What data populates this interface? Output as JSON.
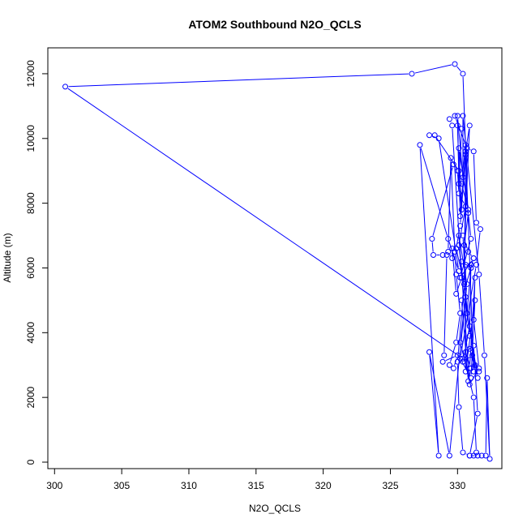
{
  "chart_data": {
    "type": "line",
    "title": "ATOM2 Southbound N2O_QCLS",
    "xlabel": "N2O_QCLS",
    "ylabel": "Altitude (m)",
    "xlim": [
      299.5,
      333.3
    ],
    "ylim": [
      -200,
      12800
    ],
    "x_ticks": [
      300,
      305,
      310,
      315,
      320,
      325,
      330
    ],
    "y_ticks": [
      0,
      2000,
      4000,
      6000,
      8000,
      10000,
      12000
    ],
    "series_color": "#0000ff",
    "marker": "open-circle",
    "grid": false,
    "legend": "none",
    "points": [
      [
        331.6,
        2800
      ],
      [
        331.1,
        3300
      ],
      [
        330.4,
        3100
      ],
      [
        330.9,
        4200
      ],
      [
        331.5,
        2600
      ],
      [
        330.9,
        3500
      ],
      [
        331.3,
        3000
      ],
      [
        330.6,
        5100
      ],
      [
        330.2,
        3700
      ],
      [
        331.2,
        2000
      ],
      [
        331.4,
        300
      ],
      [
        331.2,
        200
      ],
      [
        330.9,
        200
      ],
      [
        331.5,
        200
      ],
      [
        331.8,
        200
      ],
      [
        332.1,
        200
      ],
      [
        332.2,
        2600
      ],
      [
        332.4,
        100
      ],
      [
        332.0,
        3300
      ],
      [
        331.6,
        5800
      ],
      [
        330.4,
        10700
      ],
      [
        330.4,
        8800
      ],
      [
        330.0,
        10700
      ],
      [
        330.1,
        8600
      ],
      [
        330.3,
        10300
      ],
      [
        330.0,
        10400
      ],
      [
        330.2,
        7600
      ],
      [
        330.6,
        9600
      ],
      [
        330.9,
        10400
      ],
      [
        330.5,
        6700
      ],
      [
        330.8,
        7700
      ],
      [
        331.0,
        6900
      ],
      [
        330.2,
        5700
      ],
      [
        331.2,
        6300
      ],
      [
        330.3,
        5000
      ],
      [
        330.8,
        2500
      ],
      [
        331.0,
        2900
      ],
      [
        330.6,
        3400
      ],
      [
        331.2,
        3600
      ],
      [
        331.5,
        1500
      ],
      [
        330.9,
        200
      ],
      [
        330.4,
        300
      ],
      [
        330.1,
        1700
      ],
      [
        330.0,
        3100
      ],
      [
        330.5,
        5500
      ],
      [
        329.9,
        6600
      ],
      [
        330.2,
        7300
      ],
      [
        330.6,
        9500
      ],
      [
        330.5,
        5500
      ],
      [
        330.7,
        9700
      ],
      [
        331.2,
        9600
      ],
      [
        331.4,
        7400
      ],
      [
        331.7,
        7200
      ],
      [
        331.4,
        6100
      ],
      [
        330.2,
        3200
      ],
      [
        331.0,
        2600
      ],
      [
        331.3,
        5000
      ],
      [
        330.6,
        2800
      ],
      [
        330.6,
        6100
      ],
      [
        330.3,
        6200
      ],
      [
        331.0,
        6000
      ],
      [
        330.7,
        4600
      ],
      [
        330.4,
        7000
      ],
      [
        330.8,
        6500
      ],
      [
        331.2,
        6300
      ],
      [
        331.0,
        6100
      ],
      [
        330.9,
        3900
      ],
      [
        330.1,
        6700
      ],
      [
        330.6,
        7900
      ],
      [
        330.1,
        8300
      ],
      [
        330.0,
        9000
      ],
      [
        330.3,
        7800
      ],
      [
        330.1,
        9700
      ],
      [
        330.8,
        7800
      ],
      [
        330.3,
        8600
      ],
      [
        330.6,
        9800
      ],
      [
        329.8,
        10700
      ],
      [
        329.4,
        10600
      ],
      [
        329.6,
        10400
      ],
      [
        330.3,
        5700
      ],
      [
        329.9,
        5200
      ],
      [
        329.6,
        6600
      ],
      [
        329.6,
        6300
      ],
      [
        329.3,
        6500
      ],
      [
        329.5,
        9400
      ],
      [
        329.8,
        6500
      ],
      [
        329.9,
        5800
      ],
      [
        330.2,
        4600
      ],
      [
        329.9,
        3700
      ],
      [
        329.4,
        3000
      ],
      [
        329.7,
        2900
      ],
      [
        330.0,
        3300
      ],
      [
        328.9,
        3100
      ],
      [
        329.0,
        3300
      ],
      [
        329.2,
        6400
      ],
      [
        328.9,
        6400
      ],
      [
        328.2,
        6400
      ],
      [
        328.1,
        6900
      ],
      [
        329.7,
        9200
      ],
      [
        330.1,
        9000
      ],
      [
        328.3,
        10100
      ],
      [
        327.9,
        10100
      ],
      [
        328.6,
        10000
      ],
      [
        330.1,
        5900
      ],
      [
        329.3,
        6900
      ],
      [
        327.2,
        9800
      ],
      [
        328.6,
        200
      ],
      [
        327.9,
        3400
      ],
      [
        329.4,
        200
      ],
      [
        330.7,
        5500
      ],
      [
        330.1,
        7000
      ],
      [
        330.9,
        2400
      ],
      [
        331.6,
        2900
      ],
      [
        331.2,
        4400
      ],
      [
        331.3,
        5700
      ],
      [
        330.9,
        2900
      ],
      [
        331.2,
        2800
      ],
      [
        330.4,
        12000
      ],
      [
        329.8,
        12300
      ],
      [
        326.6,
        12000
      ],
      [
        300.8,
        11600
      ],
      [
        330.4,
        3200
      ]
    ]
  }
}
